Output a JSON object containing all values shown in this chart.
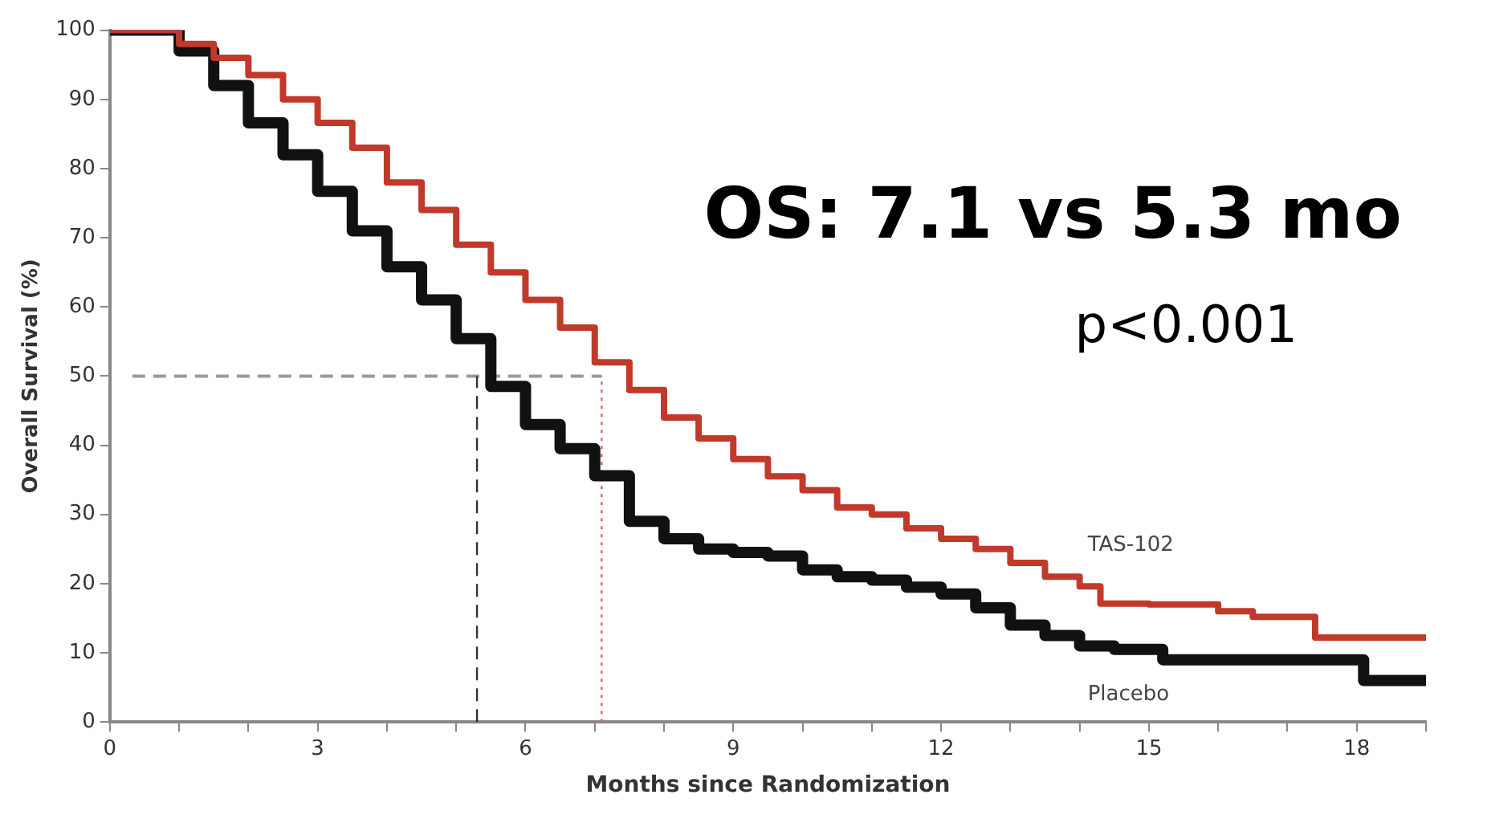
{
  "chart_data": {
    "type": "step",
    "xlabel": "Months since Randomization",
    "ylabel": "Overall Survival (%)",
    "xlim": [
      0,
      19
    ],
    "xticks": [
      0,
      {
        "value": 1,
        "label": null
      },
      {
        "value": 2,
        "label": null
      },
      3,
      {
        "value": 4,
        "label": null
      },
      {
        "value": 5,
        "label": null
      },
      6,
      {
        "value": 7,
        "label": null
      },
      {
        "value": 8,
        "label": null
      },
      9,
      {
        "value": 10,
        "label": null
      },
      {
        "value": 11,
        "label": null
      },
      12,
      {
        "value": 13,
        "label": null
      },
      {
        "value": 14,
        "label": null
      },
      15,
      {
        "value": 16,
        "label": null
      },
      {
        "value": 17,
        "label": null
      },
      18,
      {
        "value": 19,
        "label": null
      }
    ],
    "ylim": [
      0,
      100
    ],
    "yticks": [
      0,
      10,
      20,
      30,
      40,
      50,
      60,
      70,
      80,
      90,
      100
    ],
    "grid": false,
    "legend": false,
    "series": [
      {
        "name": "TAS-102",
        "color": "#c0392b",
        "x": [
          0,
          0.5,
          1,
          1.5,
          2,
          2.5,
          3,
          3.5,
          4,
          4.5,
          5,
          5.5,
          6,
          6.5,
          7,
          7.5,
          8,
          8.5,
          9,
          9.5,
          10,
          10.5,
          11,
          11.5,
          12,
          12.5,
          13,
          13.5,
          14,
          14.3,
          15,
          16,
          16.5,
          17.4,
          19
        ],
        "values": [
          100,
          100,
          98,
          96,
          93.5,
          90,
          86.6,
          83,
          78,
          74,
          69,
          65,
          61,
          57,
          52,
          48,
          44,
          41,
          38,
          35.5,
          33.5,
          31,
          30,
          28,
          26.5,
          25,
          23,
          21,
          19.6,
          17.1,
          17,
          16,
          15.2,
          12.2,
          12.2
        ]
      },
      {
        "name": "Placebo",
        "color": "#111111",
        "x": [
          0,
          0.5,
          1,
          1.5,
          2,
          2.5,
          3,
          3.5,
          4,
          4.5,
          5,
          5.5,
          6,
          6.5,
          7,
          7.5,
          8,
          8.5,
          9,
          9.5,
          10,
          10.5,
          11,
          11.5,
          12,
          12.5,
          13,
          13.5,
          14,
          14.5,
          15.2,
          16,
          17,
          18.1,
          19
        ],
        "values": [
          100,
          100,
          97,
          92,
          86.6,
          82,
          76.7,
          71,
          65.8,
          61,
          55.4,
          48.5,
          43,
          39.5,
          35.6,
          29,
          26.5,
          25,
          24.5,
          24,
          22,
          21,
          20.5,
          19.5,
          18.5,
          16.5,
          14,
          12.5,
          11,
          10.5,
          9,
          9,
          9,
          6,
          6
        ]
      }
    ],
    "ref_lines": [
      {
        "axis": "y",
        "value": 50,
        "color": "#999999",
        "line_style": "dashed"
      },
      {
        "axis": "x",
        "value": 5.3,
        "color": "#333333",
        "line_style": "dashed"
      },
      {
        "axis": "x",
        "value": 7.1,
        "color": "#e06060",
        "line_style": "dotted"
      }
    ],
    "annotations": [
      "OS: 7.1 vs 5.3 mo",
      "p<0.001"
    ]
  }
}
